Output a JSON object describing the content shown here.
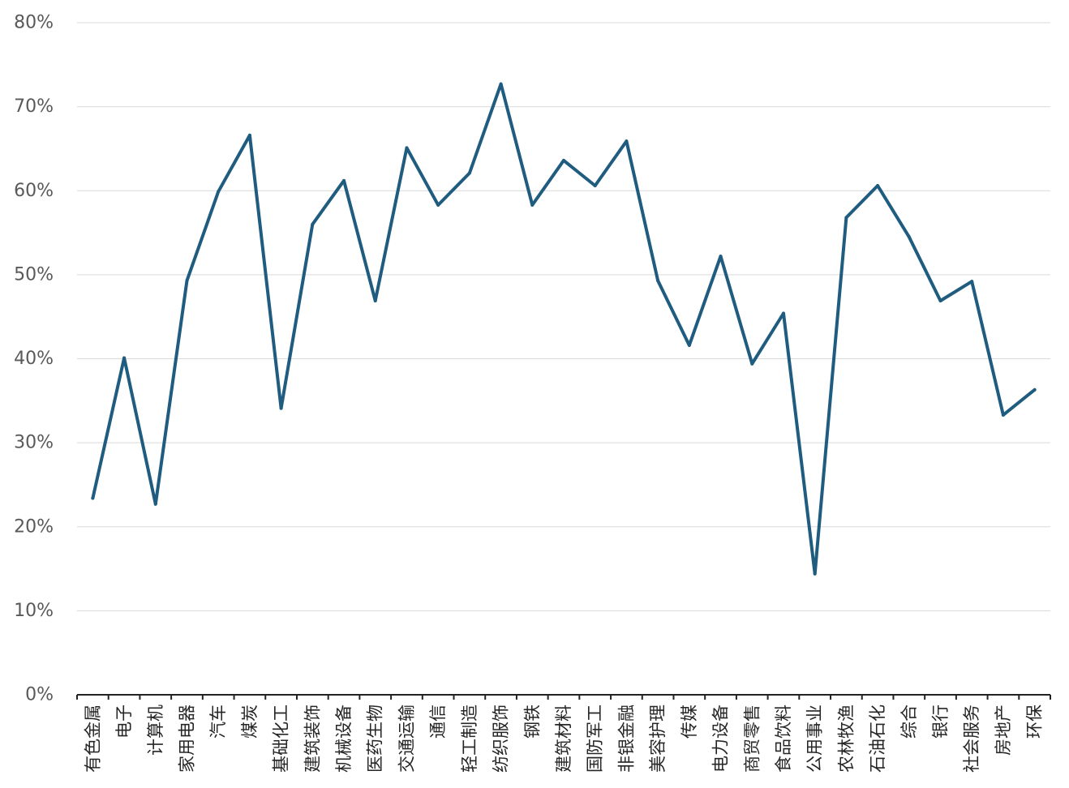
{
  "chart_data": {
    "type": "line",
    "title": "",
    "xlabel": "",
    "ylabel": "",
    "ylim": [
      0,
      80
    ],
    "yticks": [
      "0%",
      "10%",
      "20%",
      "30%",
      "40%",
      "50%",
      "60%",
      "70%",
      "80%"
    ],
    "grid": "horizontal",
    "legend": "none",
    "line_color": "#1f5c7f",
    "categories": [
      "有色金属",
      "电子",
      "计算机",
      "家用电器",
      "汽车",
      "煤炭",
      "基础化工",
      "建筑装饰",
      "机械设备",
      "医药生物",
      "交通运输",
      "通信",
      "轻工制造",
      "纺织服饰",
      "钢铁",
      "建筑材料",
      "国防军工",
      "非银金融",
      "美容护理",
      "传媒",
      "电力设备",
      "商贸零售",
      "食品饮料",
      "公用事业",
      "农林牧渔",
      "石油石化",
      "综合",
      "银行",
      "社会服务",
      "房地产",
      "环保"
    ],
    "series": [
      {
        "values": [
          23.4,
          40.1,
          22.7,
          49.3,
          59.9,
          66.6,
          34.1,
          56.0,
          61.2,
          46.9,
          65.1,
          58.3,
          62.1,
          72.7,
          58.3,
          63.6,
          60.6,
          65.9,
          49.3,
          41.6,
          52.2,
          39.4,
          45.4,
          14.4,
          56.8,
          60.6,
          54.5,
          46.9,
          49.2,
          33.3,
          36.3
        ]
      }
    ]
  }
}
